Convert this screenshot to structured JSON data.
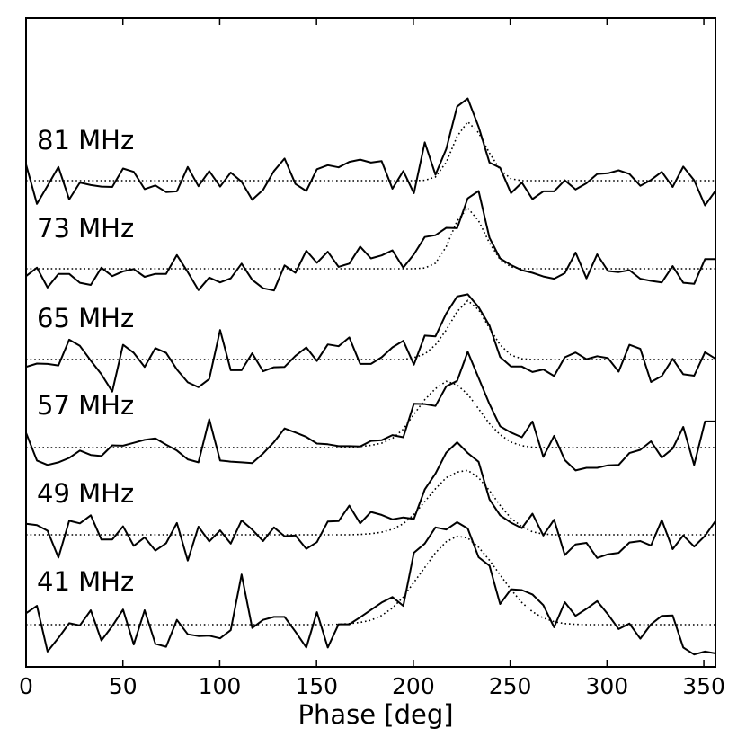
{
  "chart_data": {
    "type": "line",
    "title": "",
    "xlabel": "Phase [deg]",
    "ylabel": "",
    "xlim": [
      0,
      356
    ],
    "xticks": [
      0,
      50,
      100,
      150,
      200,
      250,
      300,
      350
    ],
    "xtick_labels": [
      "0",
      "50",
      "100",
      "150",
      "200",
      "250",
      "300",
      "350"
    ],
    "grid": false,
    "legend": "none",
    "colors": {
      "profile": "#000000",
      "fit": "#000000"
    },
    "series": [
      {
        "name": "81 MHz",
        "baseline": 0,
        "x": [
          0,
          5.6,
          11.1,
          16.7,
          22.3,
          27.8,
          33.4,
          38.9,
          44.5,
          50.1,
          55.6,
          61.2,
          66.8,
          72.3,
          77.9,
          83.5,
          89.0,
          94.6,
          100.2,
          105.7,
          111.3,
          116.8,
          122.4,
          128.0,
          133.5,
          139.1,
          144.7,
          150.2,
          155.8,
          161.4,
          166.9,
          172.5,
          178.1,
          183.6,
          189.2,
          194.8,
          200.3,
          205.9,
          211.4,
          217.0,
          222.6,
          228.1,
          233.7,
          239.3,
          244.8,
          250.4,
          256.0,
          261.5,
          267.1,
          272.7,
          278.2,
          283.8,
          289.4,
          294.9,
          300.5,
          306.0,
          311.6,
          317.2,
          322.7,
          328.3,
          333.9,
          339.4,
          345.0,
          350.6,
          356.1
        ],
        "profile": [
          0.44,
          -0.63,
          -0.14,
          0.37,
          -0.51,
          -0.05,
          -0.12,
          -0.16,
          -0.17,
          0.33,
          0.24,
          -0.23,
          -0.13,
          -0.31,
          -0.29,
          0.37,
          -0.15,
          0.26,
          -0.16,
          0.22,
          -0.03,
          -0.52,
          -0.25,
          0.26,
          0.6,
          -0.09,
          -0.28,
          0.31,
          0.42,
          0.36,
          0.51,
          0.57,
          0.49,
          0.53,
          -0.22,
          0.26,
          -0.34,
          1.04,
          0.16,
          0.86,
          2.01,
          2.23,
          1.46,
          0.49,
          0.35,
          -0.34,
          -0.05,
          -0.5,
          -0.29,
          -0.29,
          0.01,
          -0.24,
          -0.07,
          0.18,
          0.2,
          0.28,
          0.18,
          -0.14,
          0.02,
          0.24,
          -0.17,
          0.38,
          0.01,
          -0.67,
          -0.27
        ],
        "fit": [
          0,
          0,
          0,
          0,
          0,
          0,
          0,
          0,
          0,
          0,
          0,
          0,
          0,
          0,
          0,
          0,
          0,
          0,
          0,
          0,
          0,
          0,
          0,
          0,
          0,
          0,
          0,
          0,
          0,
          0,
          0,
          0,
          0,
          0,
          0,
          0,
          0,
          0.01,
          0.1,
          0.5,
          1.2,
          1.6,
          1.3,
          0.75,
          0.3,
          0.05,
          0,
          0,
          0,
          0,
          0,
          0,
          0,
          0,
          0,
          0,
          0,
          0,
          0,
          0,
          0,
          0,
          0,
          0,
          0
        ],
        "label_text": "81 MHz"
      },
      {
        "name": "73 MHz",
        "baseline": 0,
        "x": [
          0,
          5.6,
          11.1,
          16.7,
          22.3,
          27.8,
          33.4,
          38.9,
          44.5,
          50.1,
          55.6,
          61.2,
          66.8,
          72.3,
          77.9,
          83.5,
          89.0,
          94.6,
          100.2,
          105.7,
          111.3,
          116.8,
          122.4,
          128.0,
          133.5,
          139.1,
          144.7,
          150.2,
          155.8,
          161.4,
          166.9,
          172.5,
          178.1,
          183.6,
          189.2,
          194.8,
          200.3,
          205.9,
          211.4,
          217.0,
          222.6,
          228.1,
          233.7,
          239.3,
          244.8,
          250.4,
          256.0,
          261.5,
          267.1,
          272.7,
          278.2,
          283.8,
          289.4,
          294.9,
          300.5,
          306.0,
          311.6,
          317.2,
          322.7,
          328.3,
          333.9,
          339.4,
          345.0,
          350.6,
          356.1
        ],
        "profile": [
          -0.2,
          0.03,
          -0.51,
          -0.14,
          -0.14,
          -0.38,
          -0.44,
          0.03,
          -0.2,
          -0.07,
          -0.01,
          -0.22,
          -0.14,
          -0.14,
          0.37,
          -0.09,
          -0.58,
          -0.24,
          -0.37,
          -0.26,
          0.14,
          -0.3,
          -0.53,
          -0.59,
          0.09,
          -0.11,
          0.49,
          0.16,
          0.46,
          0.05,
          0.14,
          0.6,
          0.28,
          0.36,
          0.5,
          0.03,
          0.39,
          0.86,
          0.91,
          1.11,
          1.1,
          1.91,
          2.11,
          0.84,
          0.28,
          0.1,
          -0.04,
          -0.11,
          -0.21,
          -0.27,
          -0.12,
          0.44,
          -0.26,
          0.39,
          -0.06,
          -0.09,
          -0.04,
          -0.27,
          -0.33,
          -0.37,
          0.07,
          -0.38,
          -0.41,
          0.26,
          0.26
        ],
        "fit": [
          0,
          0,
          0,
          0,
          0,
          0,
          0,
          0,
          0,
          0,
          0,
          0,
          0,
          0,
          0,
          0,
          0,
          0,
          0,
          0,
          0,
          0,
          0,
          0,
          0,
          0,
          0,
          0,
          0,
          0,
          0,
          0,
          0,
          0,
          0,
          0,
          0,
          0.02,
          0.15,
          0.6,
          1.3,
          1.65,
          1.3,
          0.7,
          0.25,
          0.05,
          0,
          0,
          0,
          0,
          0,
          0,
          0,
          0,
          0,
          0,
          0,
          0,
          0,
          0,
          0,
          0,
          0,
          0,
          0
        ],
        "label_text": "73 MHz"
      },
      {
        "name": "65 MHz",
        "baseline": 0,
        "x": [
          0,
          5.6,
          11.1,
          16.7,
          22.3,
          27.8,
          33.4,
          38.9,
          44.5,
          50.1,
          55.6,
          61.2,
          66.8,
          72.3,
          77.9,
          83.5,
          89.0,
          94.6,
          100.2,
          105.7,
          111.3,
          116.8,
          122.4,
          128.0,
          133.5,
          139.1,
          144.7,
          150.2,
          155.8,
          161.4,
          166.9,
          172.5,
          178.1,
          183.6,
          189.2,
          194.8,
          200.3,
          205.9,
          211.4,
          217.0,
          222.6,
          228.1,
          233.7,
          239.3,
          244.8,
          250.4,
          256.0,
          261.5,
          267.1,
          272.7,
          278.2,
          283.8,
          289.4,
          294.9,
          300.5,
          306.0,
          311.6,
          317.2,
          322.7,
          328.3,
          333.9,
          339.4,
          345.0,
          350.6,
          356.1
        ],
        "profile": [
          -0.2,
          -0.11,
          -0.12,
          -0.16,
          0.54,
          0.37,
          -0.03,
          -0.4,
          -0.87,
          0.4,
          0.18,
          -0.2,
          0.31,
          0.18,
          -0.27,
          -0.62,
          -0.75,
          -0.53,
          0.8,
          -0.29,
          -0.29,
          0.17,
          -0.32,
          -0.21,
          -0.2,
          0.1,
          0.33,
          -0.04,
          0.41,
          0.36,
          0.6,
          -0.12,
          -0.12,
          0.06,
          0.33,
          0.51,
          -0.14,
          0.65,
          0.63,
          1.25,
          1.71,
          1.77,
          1.42,
          0.92,
          0.07,
          -0.19,
          -0.19,
          -0.34,
          -0.27,
          -0.45,
          0.06,
          0.19,
          0.01,
          0.09,
          0.04,
          -0.33,
          0.4,
          0.29,
          -0.61,
          -0.45,
          0.02,
          -0.4,
          -0.44,
          0.2,
          0.02
        ],
        "fit": [
          0,
          0,
          0,
          0,
          0,
          0,
          0,
          0,
          0,
          0,
          0,
          0,
          0,
          0,
          0,
          0,
          0,
          0,
          0,
          0,
          0,
          0,
          0,
          0,
          0,
          0,
          0,
          0,
          0,
          0,
          0,
          0,
          0,
          0,
          0,
          0,
          0.05,
          0.15,
          0.4,
          0.8,
          1.3,
          1.6,
          1.35,
          0.85,
          0.4,
          0.12,
          0.02,
          0,
          0,
          0,
          0,
          0,
          0,
          0,
          0,
          0,
          0,
          0,
          0,
          0,
          0,
          0,
          0,
          0,
          0
        ],
        "label_text": "65 MHz"
      },
      {
        "name": "57 MHz",
        "baseline": 0,
        "x": [
          0,
          5.6,
          11.1,
          16.7,
          22.3,
          27.8,
          33.4,
          38.9,
          44.5,
          50.1,
          55.6,
          61.2,
          66.8,
          72.3,
          77.9,
          83.5,
          89.0,
          94.6,
          100.2,
          105.7,
          111.3,
          116.8,
          122.4,
          128.0,
          133.5,
          139.1,
          144.7,
          150.2,
          155.8,
          161.4,
          166.9,
          172.5,
          178.1,
          183.6,
          189.2,
          194.8,
          200.3,
          205.9,
          211.4,
          217.0,
          222.6,
          228.1,
          233.7,
          239.3,
          244.8,
          250.4,
          256.0,
          261.5,
          267.1,
          272.7,
          278.2,
          283.8,
          289.4,
          294.9,
          300.5,
          306.0,
          311.6,
          317.2,
          322.7,
          328.3,
          333.9,
          339.4,
          345.0,
          350.6,
          356.1
        ],
        "profile": [
          0.4,
          -0.35,
          -0.47,
          -0.4,
          -0.28,
          -0.08,
          -0.2,
          -0.23,
          0.06,
          0.05,
          0.13,
          0.21,
          0.25,
          0.08,
          -0.08,
          -0.32,
          -0.4,
          0.77,
          -0.35,
          -0.38,
          -0.4,
          -0.42,
          -0.16,
          0.15,
          0.52,
          0.41,
          0.29,
          0.11,
          0.09,
          0.04,
          0.04,
          0.03,
          0.18,
          0.2,
          0.34,
          0.28,
          1.19,
          1.18,
          1.13,
          1.66,
          1.81,
          2.6,
          1.89,
          1.18,
          0.58,
          0.41,
          0.28,
          0.71,
          -0.25,
          0.32,
          -0.34,
          -0.62,
          -0.55,
          -0.55,
          -0.48,
          -0.47,
          -0.15,
          -0.06,
          0.17,
          -0.27,
          -0.03,
          0.56,
          -0.47,
          0.71,
          0.71
        ],
        "fit": [
          0,
          0,
          0,
          0,
          0,
          0,
          0,
          0,
          0,
          0,
          0,
          0,
          0,
          0,
          0,
          0,
          0,
          0,
          0,
          0,
          0,
          0,
          0,
          0,
          0,
          0,
          0,
          0,
          0,
          0,
          0.01,
          0.03,
          0.06,
          0.12,
          0.25,
          0.5,
          0.9,
          1.3,
          1.6,
          1.8,
          1.7,
          1.45,
          1.05,
          0.65,
          0.35,
          0.15,
          0.05,
          0.01,
          0,
          0,
          0,
          0,
          0,
          0,
          0,
          0,
          0,
          0,
          0,
          0,
          0,
          0,
          0,
          0,
          0
        ],
        "label_text": "57 MHz"
      },
      {
        "name": "49 MHz",
        "baseline": 0,
        "x": [
          0,
          5.6,
          11.1,
          16.7,
          22.3,
          27.8,
          33.4,
          38.9,
          44.5,
          50.1,
          55.6,
          61.2,
          66.8,
          72.3,
          77.9,
          83.5,
          89.0,
          94.6,
          100.2,
          105.7,
          111.3,
          116.8,
          122.4,
          128.0,
          133.5,
          139.1,
          144.7,
          150.2,
          155.8,
          161.4,
          166.9,
          172.5,
          178.1,
          183.6,
          189.2,
          194.8,
          200.3,
          205.9,
          211.4,
          217.0,
          222.6,
          228.1,
          233.7,
          239.3,
          244.8,
          250.4,
          256.0,
          261.5,
          267.1,
          272.7,
          278.2,
          283.8,
          289.4,
          294.9,
          300.5,
          306.0,
          311.6,
          317.2,
          322.7,
          328.3,
          333.9,
          339.4,
          345.0,
          350.6,
          356.1
        ],
        "profile": [
          0.3,
          0.26,
          0.11,
          -0.62,
          0.38,
          0.31,
          0.53,
          -0.13,
          -0.13,
          0.23,
          -0.3,
          -0.07,
          -0.43,
          -0.23,
          0.32,
          -0.7,
          0.22,
          -0.18,
          0.12,
          -0.24,
          0.39,
          0.14,
          -0.17,
          0.2,
          -0.04,
          -0.02,
          -0.38,
          -0.2,
          0.36,
          0.37,
          0.79,
          0.31,
          0.62,
          0.54,
          0.42,
          0.47,
          0.43,
          1.23,
          1.66,
          2.23,
          2.51,
          2.22,
          1.98,
          0.96,
          0.53,
          0.33,
          0.18,
          0.57,
          -0.02,
          0.41,
          -0.55,
          -0.26,
          -0.22,
          -0.63,
          -0.53,
          -0.49,
          -0.21,
          -0.17,
          -0.29,
          0.4,
          -0.39,
          -0.02,
          -0.32,
          -0.03,
          0.38
        ],
        "fit": [
          0,
          0,
          0,
          0,
          0,
          0,
          0,
          0,
          0,
          0,
          0,
          0,
          0,
          0,
          0,
          0,
          0,
          0,
          0,
          0,
          0,
          0,
          0,
          0,
          0,
          0,
          0,
          0,
          0,
          0,
          0,
          0.01,
          0.03,
          0.07,
          0.15,
          0.3,
          0.55,
          0.9,
          1.25,
          1.55,
          1.7,
          1.75,
          1.55,
          1.2,
          0.8,
          0.45,
          0.22,
          0.08,
          0.02,
          0,
          0,
          0,
          0,
          0,
          0,
          0,
          0,
          0,
          0,
          0,
          0,
          0,
          0,
          0,
          0
        ],
        "label_text": "49 MHz"
      },
      {
        "name": "41 MHz",
        "baseline": 0,
        "x": [
          0,
          5.6,
          11.1,
          16.7,
          22.3,
          27.8,
          33.4,
          38.9,
          44.5,
          50.1,
          55.6,
          61.2,
          66.8,
          72.3,
          77.9,
          83.5,
          89.0,
          94.6,
          100.2,
          105.7,
          111.3,
          116.8,
          122.4,
          128.0,
          133.5,
          139.1,
          144.7,
          150.2,
          155.8,
          161.4,
          166.9,
          172.5,
          178.1,
          183.6,
          189.2,
          194.8,
          200.3,
          205.9,
          211.4,
          217.0,
          222.6,
          228.1,
          233.7,
          239.3,
          244.8,
          250.4,
          256.0,
          261.5,
          267.1,
          272.7,
          278.2,
          283.8,
          289.4,
          294.9,
          300.5,
          306.0,
          311.6,
          317.2,
          322.7,
          328.3,
          333.9,
          339.4,
          345.0,
          350.6,
          356.1
        ],
        "profile": [
          0.31,
          0.51,
          -0.73,
          -0.36,
          0.04,
          -0.02,
          0.39,
          -0.43,
          -0.04,
          0.41,
          -0.54,
          0.39,
          -0.52,
          -0.6,
          0.13,
          -0.26,
          -0.31,
          -0.3,
          -0.37,
          -0.15,
          1.36,
          -0.09,
          0.13,
          0.21,
          0.21,
          -0.19,
          -0.62,
          0.34,
          -0.62,
          0.01,
          0.01,
          0.2,
          0.4,
          0.6,
          0.75,
          0.51,
          1.95,
          2.2,
          2.64,
          2.58,
          2.78,
          2.61,
          1.83,
          1.6,
          0.56,
          0.96,
          0.94,
          0.82,
          0.53,
          -0.07,
          0.61,
          0.24,
          0.43,
          0.64,
          0.28,
          -0.12,
          0.03,
          -0.38,
          0.01,
          0.24,
          0.25,
          -0.62,
          -0.81,
          -0.73,
          -0.78
        ],
        "fit": [
          0,
          0,
          0,
          0,
          0,
          0,
          0,
          0,
          0,
          0,
          0,
          0,
          0,
          0,
          0,
          0,
          0,
          0,
          0,
          0,
          0,
          0,
          0,
          0,
          0,
          0,
          0,
          0,
          0,
          0.01,
          0.03,
          0.06,
          0.12,
          0.25,
          0.45,
          0.75,
          1.15,
          1.55,
          1.95,
          2.25,
          2.4,
          2.35,
          2.1,
          1.75,
          1.35,
          0.95,
          0.6,
          0.35,
          0.18,
          0.08,
          0.03,
          0.01,
          0,
          0,
          0,
          0,
          0,
          0,
          0,
          0,
          0,
          0,
          0,
          0,
          0
        ],
        "label_text": "41 MHz"
      }
    ]
  }
}
